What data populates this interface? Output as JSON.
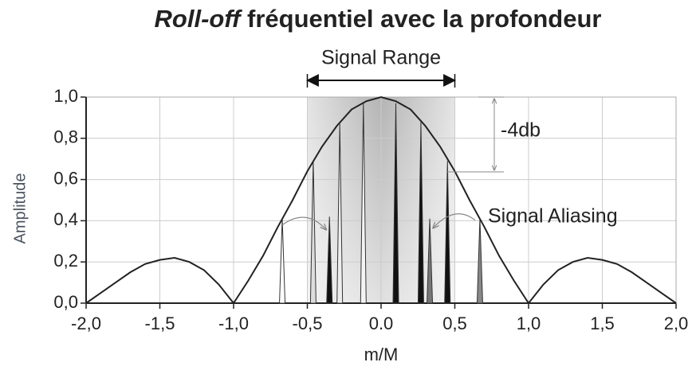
{
  "chart_data": {
    "type": "line",
    "title_parts": [
      "Roll-off",
      "fréquentiel avec la profondeur"
    ],
    "xlabel": "m/M",
    "ylabel": "Amplitude",
    "xlim": [
      -2,
      2
    ],
    "ylim": [
      0,
      1
    ],
    "xticks": [
      {
        "value": -2,
        "label": "-2,0"
      },
      {
        "value": -1.5,
        "label": "-1,5"
      },
      {
        "value": -1,
        "label": "-1,0"
      },
      {
        "value": -0.5,
        "label": "-0,5"
      },
      {
        "value": 0,
        "label": "0.0"
      },
      {
        "value": 0.5,
        "label": "0,5"
      },
      {
        "value": 1,
        "label": "1,0"
      },
      {
        "value": 1.5,
        "label": "1,5"
      },
      {
        "value": 2,
        "label": "2,0"
      }
    ],
    "yticks": [
      {
        "value": 0,
        "label": "0,0"
      },
      {
        "value": 0.2,
        "label": "0,2"
      },
      {
        "value": 0.4,
        "label": "0,4"
      },
      {
        "value": 0.6,
        "label": "0,6"
      },
      {
        "value": 0.8,
        "label": "0,8"
      },
      {
        "value": 1,
        "label": "1,0"
      }
    ],
    "grid": true,
    "series": [
      {
        "name": "envelope",
        "color": "#222222",
        "x": [
          -2,
          -1.9,
          -1.8,
          -1.7,
          -1.6,
          -1.5,
          -1.4,
          -1.3,
          -1.2,
          -1.1,
          -1,
          -0.9,
          -0.8,
          -0.7,
          -0.6,
          -0.5,
          -0.4,
          -0.3,
          -0.2,
          -0.1,
          0,
          0.1,
          0.2,
          0.3,
          0.4,
          0.5,
          0.6,
          0.7,
          0.8,
          0.9,
          1,
          1.1,
          1.2,
          1.3,
          1.4,
          1.5,
          1.6,
          1.7,
          1.8,
          1.9,
          2
        ],
        "values": [
          0,
          0.05,
          0.1,
          0.15,
          0.19,
          0.21,
          0.22,
          0.2,
          0.16,
          0.09,
          0,
          0.11,
          0.23,
          0.37,
          0.5,
          0.64,
          0.76,
          0.86,
          0.94,
          0.98,
          1,
          0.98,
          0.94,
          0.86,
          0.76,
          0.64,
          0.5,
          0.37,
          0.23,
          0.11,
          0,
          0.09,
          0.16,
          0.2,
          0.22,
          0.21,
          0.19,
          0.15,
          0.1,
          0.05,
          0
        ]
      }
    ],
    "spikes": {
      "x": [
        -0.67,
        -0.46,
        -0.35,
        -0.28,
        -0.12,
        0.1,
        0.27,
        0.45,
        0.33,
        0.67
      ],
      "values": [
        0.41,
        0.69,
        0.42,
        0.87,
        0.97,
        0.97,
        0.88,
        0.69,
        0.41,
        0.41
      ],
      "colors": [
        "#ffffff",
        "#dddddd",
        "#111111",
        "#eeeeee",
        "#f4f4f4",
        "#111111",
        "#111111",
        "#111111",
        "#777777",
        "#888888"
      ]
    },
    "shaded_range": [
      -0.5,
      0.5
    ],
    "annotations": {
      "range": "Signal Range",
      "drop": "-4db",
      "aliasing": "Signal Aliasing"
    }
  }
}
